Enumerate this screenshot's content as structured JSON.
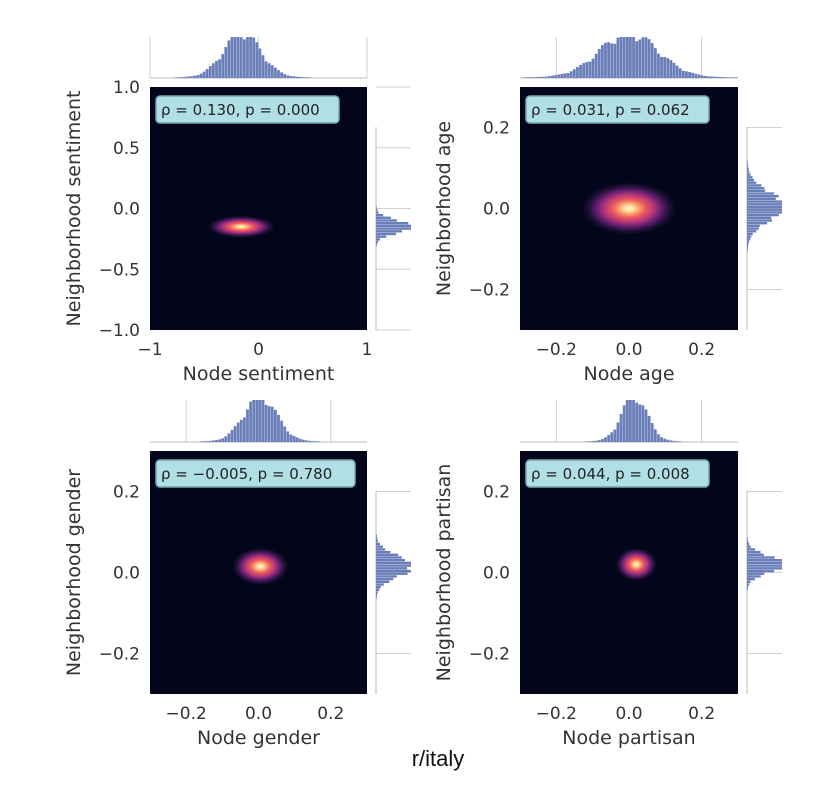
{
  "suptitle": "r/italy",
  "chart_data": [
    {
      "type": "heatmap",
      "subtype": "joint-kde-with-marginal-histograms",
      "xlabel": "Node sentiment",
      "ylabel": "Neighborhood sentiment",
      "xlim": [
        -1,
        1
      ],
      "ylim": [
        -1,
        1
      ],
      "xticks": [
        -1,
        0,
        1
      ],
      "xtick_labels": [
        "−1",
        "0",
        "1"
      ],
      "yticks": [
        -1.0,
        -0.5,
        0.0,
        0.5,
        1.0
      ],
      "ytick_labels": [
        "−1.0",
        "−0.5",
        "0.0",
        "0.5",
        "1.0"
      ],
      "annotation": "ρ = 0.130, p = 0.000",
      "peak": {
        "x": -0.16,
        "y": -0.15
      },
      "spread": {
        "x": 0.12,
        "y": 0.035
      },
      "marginal_x_center": -0.15,
      "marginal_x_width": 0.17,
      "marginal_y_center": -0.15,
      "marginal_y_width": 0.05
    },
    {
      "type": "heatmap",
      "subtype": "joint-kde-with-marginal-histograms",
      "xlabel": "Node age",
      "ylabel": "Neighborhood age",
      "xlim": [
        -0.3,
        0.3
      ],
      "ylim": [
        -0.3,
        0.3
      ],
      "xticks": [
        -0.2,
        0.0,
        0.2
      ],
      "xtick_labels": [
        "−0.2",
        "0.0",
        "0.2"
      ],
      "yticks": [
        -0.2,
        0.0,
        0.2
      ],
      "ytick_labels": [
        "−0.2",
        "0.0",
        "0.2"
      ],
      "annotation": "ρ = 0.031, p = 0.062",
      "peak": {
        "x": 0.0,
        "y": 0.0
      },
      "spread": {
        "x": 0.05,
        "y": 0.025
      },
      "marginal_x_center": 0.0,
      "marginal_x_width": 0.08,
      "marginal_y_center": 0.005,
      "marginal_y_width": 0.035
    },
    {
      "type": "heatmap",
      "subtype": "joint-kde-with-marginal-histograms",
      "xlabel": "Node gender",
      "ylabel": "Neighborhood gender",
      "xlim": [
        -0.3,
        0.3
      ],
      "ylim": [
        -0.3,
        0.3
      ],
      "xticks": [
        -0.2,
        0.0,
        0.2
      ],
      "xtick_labels": [
        "−0.2",
        "0.0",
        "0.2"
      ],
      "yticks": [
        -0.2,
        0.0,
        0.2
      ],
      "ytick_labels": [
        "−0.2",
        "0.0",
        "0.2"
      ],
      "annotation": "ρ = −0.005, p = 0.780",
      "peak": {
        "x": 0.005,
        "y": 0.015
      },
      "spread": {
        "x": 0.03,
        "y": 0.018
      },
      "marginal_x_center": 0.005,
      "marginal_x_width": 0.045,
      "marginal_y_center": 0.015,
      "marginal_y_width": 0.025
    },
    {
      "type": "heatmap",
      "subtype": "joint-kde-with-marginal-histograms",
      "xlabel": "Node partisan",
      "ylabel": "Neighborhood partisan",
      "xlim": [
        -0.3,
        0.3
      ],
      "ylim": [
        -0.3,
        0.3
      ],
      "xticks": [
        -0.2,
        0.0,
        0.2
      ],
      "xtick_labels": [
        "−0.2",
        "0.0",
        "0.2"
      ],
      "yticks": [
        -0.2,
        0.0,
        0.2
      ],
      "ytick_labels": [
        "−0.2",
        "0.0",
        "0.2"
      ],
      "annotation": "ρ = 0.044, p = 0.008",
      "peak": {
        "x": 0.02,
        "y": 0.02
      },
      "spread": {
        "x": 0.022,
        "y": 0.016
      },
      "marginal_x_center": 0.015,
      "marginal_x_width": 0.035,
      "marginal_y_center": 0.02,
      "marginal_y_width": 0.02
    }
  ],
  "colors": {
    "background_heat": "#03051a",
    "marginal_bars": "#6a7fba",
    "annotation_box": "#b0e0e6",
    "annotation_border": "#6fa9b3"
  }
}
